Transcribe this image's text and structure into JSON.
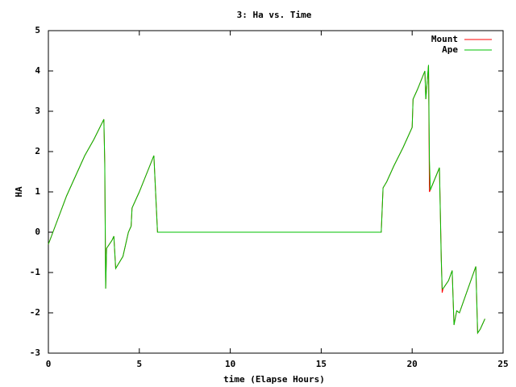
{
  "chart_data": {
    "type": "line",
    "title": "3: Ha vs. Time",
    "xlabel": "time (Elapse Hours)",
    "ylabel": "HA",
    "x": [
      0,
      0.5,
      1,
      2,
      2.5,
      3.05,
      3.1,
      3.15,
      3.2,
      3.5,
      3.6,
      3.7,
      4.1,
      4.2,
      4.4,
      4.55,
      4.6,
      5,
      5.8,
      6.0,
      18.3,
      18.4,
      18.6,
      19,
      19.5,
      20,
      20.05,
      20.3,
      20.7,
      20.75,
      20.9,
      20.95,
      21.0,
      21.5,
      21.6,
      21.65,
      21.7,
      22.0,
      22.2,
      22.3,
      22.45,
      22.6,
      23.5,
      23.6,
      23.75,
      24
    ],
    "series": [
      {
        "name": "Mount",
        "color": "#ff0000",
        "values": [
          -0.3,
          0.3,
          0.9,
          1.9,
          2.3,
          2.8,
          1.7,
          -1.4,
          -0.4,
          -0.2,
          -0.1,
          -0.9,
          -0.6,
          -0.4,
          0,
          0.15,
          0.6,
          1.0,
          1.9,
          0,
          0,
          1.1,
          1.25,
          1.65,
          2.1,
          2.6,
          3.3,
          3.55,
          4.0,
          3.3,
          4.15,
          1.0,
          1.05,
          1.6,
          -0.6,
          -1.5,
          -1.4,
          -1.2,
          -0.95,
          -2.3,
          -1.95,
          -2.0,
          -0.85,
          -2.5,
          -2.4,
          -2.15
        ]
      },
      {
        "name": "Ape",
        "color": "#00c000",
        "values": [
          -0.3,
          0.3,
          0.9,
          1.9,
          2.3,
          2.8,
          1.7,
          -1.4,
          -0.4,
          -0.2,
          -0.1,
          -0.9,
          -0.6,
          -0.4,
          0,
          0.15,
          0.6,
          1.0,
          1.9,
          0,
          0,
          1.1,
          1.25,
          1.65,
          2.1,
          2.6,
          3.3,
          3.55,
          4.0,
          3.3,
          4.15,
          1.8,
          1.05,
          1.6,
          -0.7,
          -1.4,
          -1.4,
          -1.2,
          -0.95,
          -2.3,
          -1.95,
          -2.0,
          -0.85,
          -2.5,
          -2.4,
          -2.15
        ]
      }
    ],
    "xlim": [
      0,
      25
    ],
    "xticks": [
      0,
      5,
      10,
      15,
      20,
      25
    ],
    "ylim": [
      -3,
      5
    ],
    "yticks": [
      -3,
      -2,
      -1,
      0,
      1,
      2,
      3,
      4,
      5
    ],
    "legend": "top-right"
  }
}
